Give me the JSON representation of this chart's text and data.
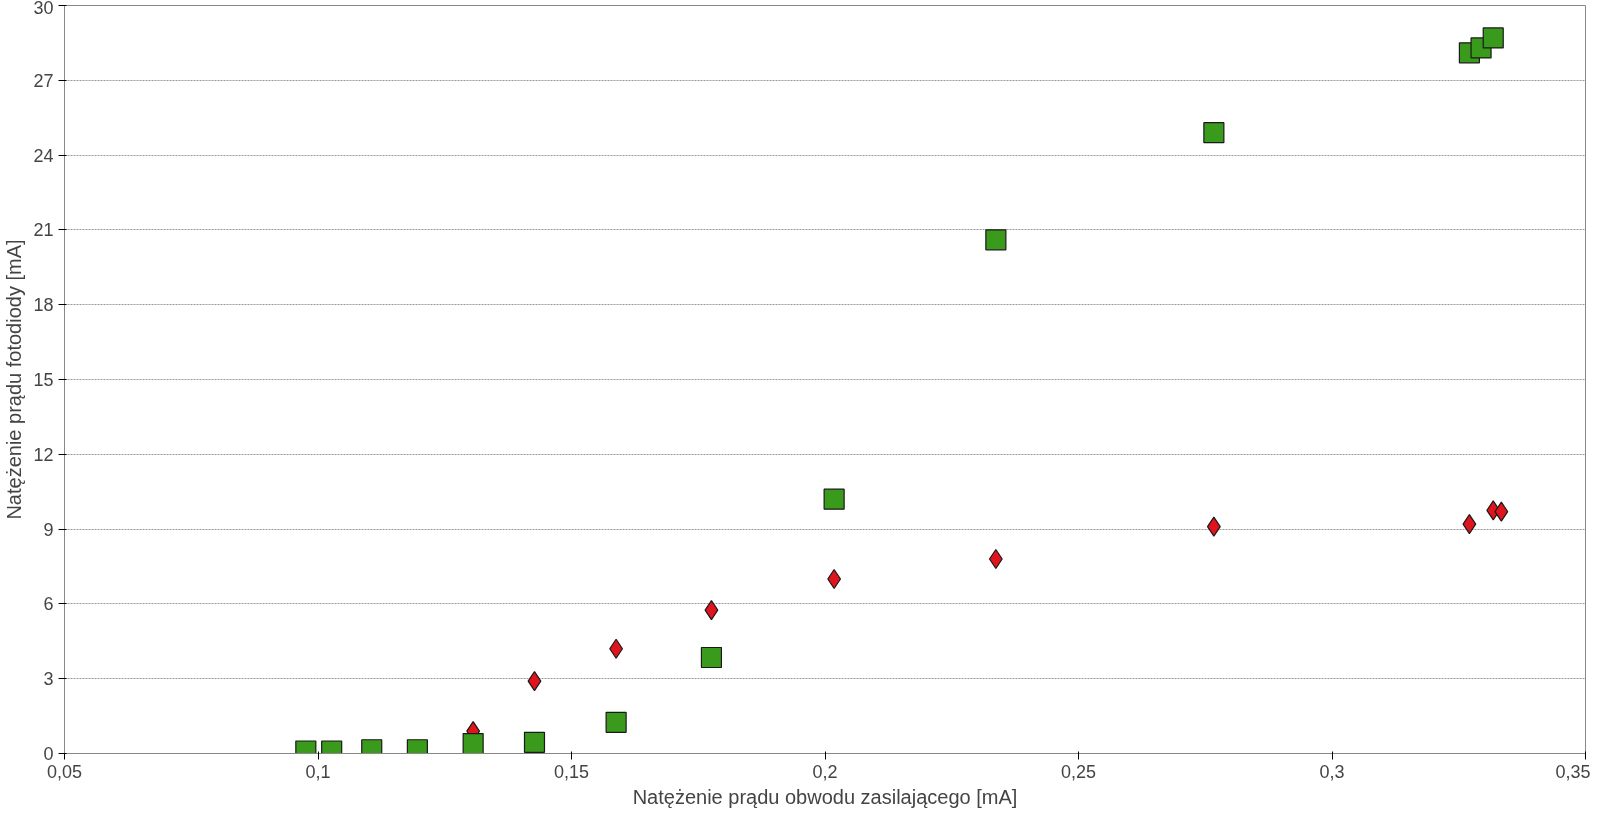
{
  "chart_data": {
    "type": "scatter",
    "xlabel": "Natężenie prądu obwodu zasilającego [mA]",
    "ylabel": "Natężenie prądu fotodiody [mA]",
    "xlim": [
      0.05,
      0.35
    ],
    "xticks": [
      {
        "value": 0.05,
        "label": "0,05"
      },
      {
        "value": 0.1,
        "label": "0,1"
      },
      {
        "value": 0.15,
        "label": "0,15"
      },
      {
        "value": 0.2,
        "label": "0,2"
      },
      {
        "value": 0.25,
        "label": "0,25"
      },
      {
        "value": 0.3,
        "label": "0,3"
      },
      {
        "value": 0.35,
        "label": "0,35"
      }
    ],
    "ylim": [
      0,
      30
    ],
    "yticks": [
      0,
      3,
      6,
      9,
      12,
      15,
      18,
      21,
      24,
      27,
      30
    ],
    "grid": "y",
    "series": [
      {
        "color": "#e0141c",
        "marker": "diamond",
        "x": [
          0.1306,
          0.1427,
          0.1588,
          0.1776,
          0.2018,
          0.2337,
          0.2767,
          0.3271,
          0.3318,
          0.3334
        ],
        "values": [
          0.9,
          2.9,
          4.2,
          5.75,
          7.0,
          7.8,
          9.1,
          9.2,
          9.75,
          9.7
        ]
      },
      {
        "color": "#3a9a1c",
        "marker": "square",
        "x": [
          0.0976,
          0.1027,
          0.1106,
          0.1196,
          0.1306,
          0.1427,
          0.1588,
          0.1776,
          0.2018,
          0.2337,
          0.2767,
          0.3271,
          0.3294,
          0.3318
        ],
        "values": [
          0.1,
          0.1,
          0.15,
          0.15,
          0.4,
          0.45,
          1.25,
          3.85,
          10.2,
          20.6,
          24.9,
          28.1,
          28.3,
          28.7
        ]
      }
    ]
  }
}
